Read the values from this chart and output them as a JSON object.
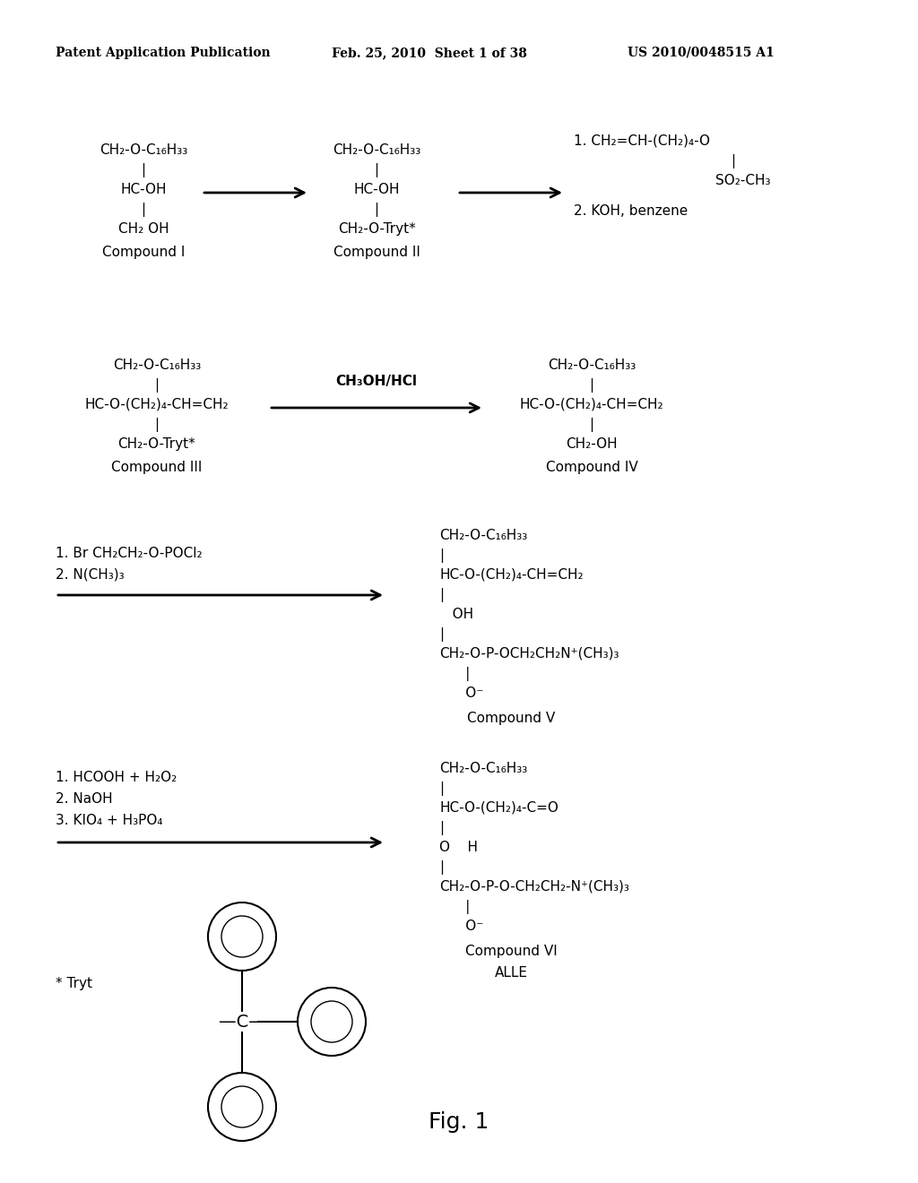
{
  "bg": "#ffffff",
  "header_left": "Patent Application Publication",
  "header_mid": "Feb. 25, 2010  Sheet 1 of 38",
  "header_right": "US 2010/0048515 A1",
  "fig_label": "Fig. 1"
}
